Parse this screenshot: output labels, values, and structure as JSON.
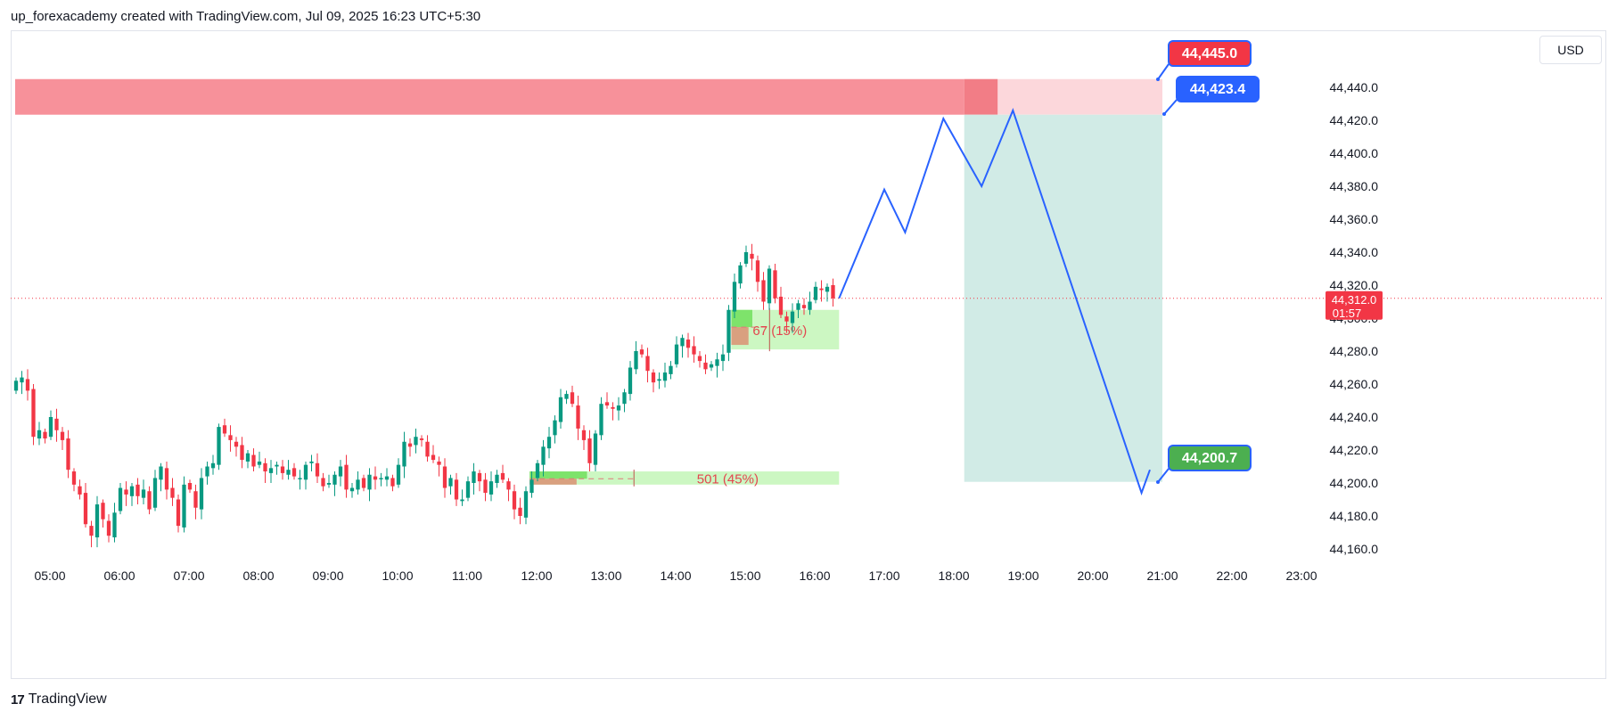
{
  "header": {
    "attribution": "up_forexacademy created with TradingView.com, Jul 09, 2025 16:23 UTC+5:30"
  },
  "footer": {
    "brand": "TradingView",
    "logo_glyph": "17"
  },
  "currency_button": "USD",
  "colors": {
    "up": "#089981",
    "down": "#f23645",
    "projection": "#2962ff",
    "zone": "#f7919a",
    "target_box": "#d1ebe6",
    "measure_fill": "#ccf7c2"
  },
  "chart_data": {
    "type": "candlestick",
    "y_axis": {
      "ylim": [
        44150,
        44450
      ],
      "ticks": [
        44160,
        44180,
        44200,
        44220,
        44240,
        44260,
        44280,
        44300,
        44320,
        44340,
        44360,
        44380,
        44400,
        44420,
        44440
      ],
      "tick_labels": [
        "44,160.0",
        "44,180.0",
        "44,200.0",
        "44,220.0",
        "44,240.0",
        "44,260.0",
        "44,280.0",
        "44,300.0",
        "44,320.0",
        "44,340.0",
        "44,360.0",
        "44,380.0",
        "44,400.0",
        "44,420.0",
        "44,440.0"
      ]
    },
    "x_axis": {
      "hours": [
        5,
        6,
        7,
        8,
        9,
        10,
        11,
        12,
        13,
        14,
        15,
        16,
        17,
        18,
        19,
        20,
        21,
        22,
        23
      ],
      "tick_labels": [
        "05:00",
        "06:00",
        "07:00",
        "08:00",
        "09:00",
        "10:00",
        "11:00",
        "12:00",
        "13:00",
        "14:00",
        "15:00",
        "16:00",
        "17:00",
        "18:00",
        "19:00",
        "20:00",
        "21:00",
        "22:00",
        "23:00"
      ],
      "first_candle_hour": 4.5,
      "bar_minutes": 5
    },
    "closes": [
      44262,
      44264,
      44256,
      44228,
      44232,
      44227,
      44240,
      44232,
      44226,
      44208,
      44199,
      44193,
      44175,
      44168,
      44187,
      44178,
      44168,
      44182,
      44197,
      44193,
      44198,
      44192,
      44196,
      44184,
      44203,
      44210,
      44196,
      44191,
      44174,
      44199,
      44196,
      44185,
      44203,
      44210,
      44212,
      44234,
      44230,
      44226,
      44222,
      44214,
      44218,
      44210,
      44213,
      44207,
      44209,
      44211,
      44206,
      44208,
      44204,
      44203,
      44211,
      44213,
      44204,
      44198,
      44200,
      44205,
      44210,
      44196,
      44197,
      44202,
      44197,
      44205,
      44202,
      44203,
      44204,
      44198,
      44211,
      44225,
      44222,
      44228,
      44226,
      44216,
      44214,
      44211,
      44197,
      44203,
      44190,
      44190,
      44201,
      44207,
      44201,
      44194,
      44201,
      44205,
      44202,
      44196,
      44184,
      44180,
      44195,
      44202,
      44212,
      44222,
      44228,
      44238,
      44252,
      44254,
      44248,
      44233,
      44226,
      44212,
      44230,
      44248,
      44247,
      44245,
      44247,
      44255,
      44270,
      44280,
      44278,
      44268,
      44261,
      44263,
      44267,
      44271,
      44284,
      44288,
      44282,
      44278,
      44274,
      44269,
      44272,
      44275,
      44278,
      44305,
      44322,
      44332,
      44340,
      44336,
      44322,
      44310,
      44330,
      44312,
      44302,
      44298,
      44304,
      44309,
      44306,
      44310,
      44319,
      44317,
      44319,
      44312
    ],
    "current_price": 44312.0,
    "current_price_label": "44,312.0",
    "countdown": "01:57",
    "supply_zone": {
      "top": 44445.0,
      "bottom": 44423.4,
      "start_hour": 4.5,
      "end_hour": 18.15
    },
    "trade_plan": {
      "entry": 44423.4,
      "stop": 44445.0,
      "target": 44200.7,
      "start_hour": 18.15,
      "end_hour": 21.0,
      "entry_label": "44,423.4",
      "stop_label": "44,445.0",
      "target_label": "44,200.7"
    },
    "projection_path": [
      [
        16.35,
        44312
      ],
      [
        17.0,
        44378
      ],
      [
        17.3,
        44352
      ],
      [
        17.85,
        44421
      ],
      [
        18.4,
        44380
      ],
      [
        18.85,
        44426
      ],
      [
        20.7,
        44194
      ],
      [
        20.82,
        44208
      ]
    ],
    "measure_boxes": [
      {
        "label": "67 (15%)",
        "start_hour": 14.8,
        "end_hour": 16.35,
        "top": 44305,
        "bottom": 44281,
        "high": 44305,
        "low": 44286,
        "marker_hour": 15.35,
        "ghost_low": 44281
      },
      {
        "label": "501 (45%)",
        "start_hour": 11.9,
        "end_hour": 16.35,
        "top": 44207,
        "bottom": 44199,
        "high": 44207,
        "low": 44199,
        "marker_hour": 13.4,
        "ghost_low": 44199
      }
    ]
  }
}
